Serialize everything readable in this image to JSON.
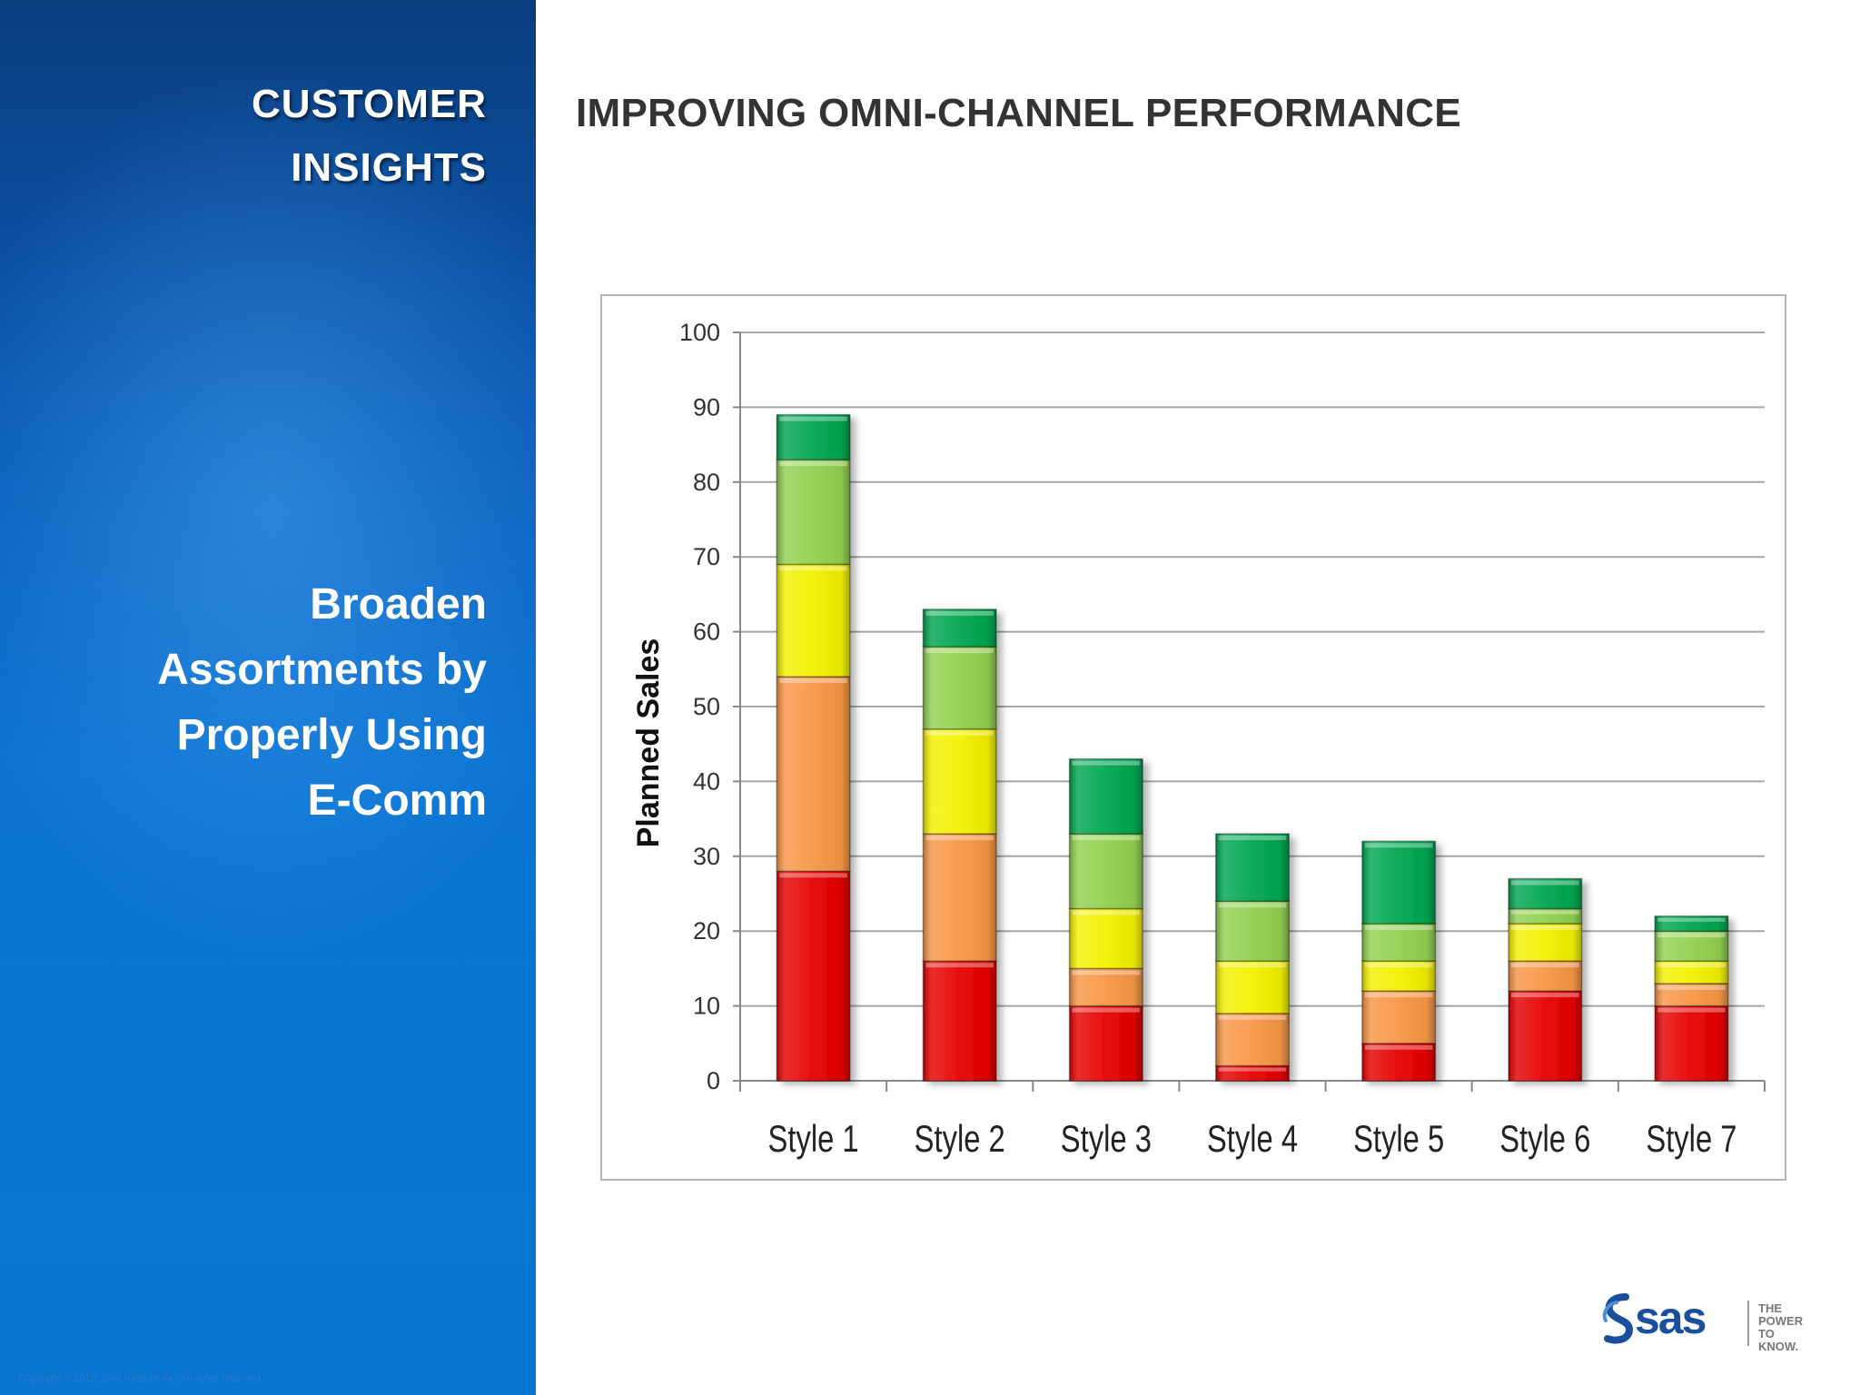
{
  "sidebar": {
    "section_title_lines": [
      "CUSTOMER",
      "INSIGHTS"
    ],
    "message_lines": [
      "Broaden",
      "Assortments by",
      "Properly Using",
      "E-Comm"
    ],
    "copyright": "Copyright © 2012, SAS Institute Inc. All rights reserved."
  },
  "header": {
    "title": "IMPROVING OMNI-CHANNEL PERFORMANCE"
  },
  "logo": {
    "name": "sas",
    "tagline_lines": [
      "THE",
      "POWER",
      "TO KNOW."
    ]
  },
  "chart_data": {
    "type": "bar",
    "stacked": true,
    "categories": [
      "Style 1",
      "Style 2",
      "Style 3",
      "Style 4",
      "Style 5",
      "Style 6",
      "Style 7"
    ],
    "series": [
      {
        "color": "#e60000",
        "values": [
          28,
          16,
          10,
          2,
          5,
          12,
          10
        ]
      },
      {
        "color": "#f79646",
        "values": [
          26,
          17,
          5,
          7,
          7,
          4,
          3
        ]
      },
      {
        "color": "#f2f000",
        "values": [
          15,
          14,
          8,
          7,
          4,
          5,
          3
        ]
      },
      {
        "color": "#92d050",
        "values": [
          14,
          11,
          10,
          8,
          5,
          2,
          4
        ]
      },
      {
        "color": "#00a650",
        "values": [
          6,
          5,
          10,
          9,
          11,
          4,
          2
        ]
      }
    ],
    "title": "",
    "xlabel": "",
    "ylabel": "Planned Sales",
    "ylim": [
      0,
      100
    ],
    "yticks": [
      0,
      10,
      20,
      30,
      40,
      50,
      60,
      70,
      80,
      90,
      100
    ],
    "grid": true,
    "legend": "none"
  }
}
